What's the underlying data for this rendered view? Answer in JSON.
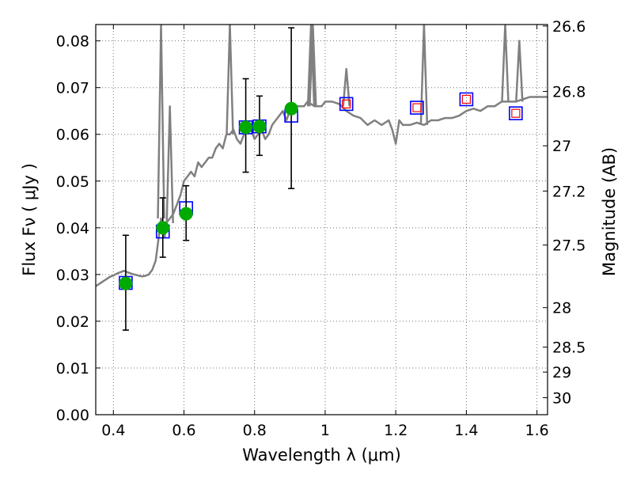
{
  "chart_data": {
    "type": "scatter",
    "xlabel": "Wavelength  λ (μm)",
    "ylabel": "Flux  Fν  ( μJy )",
    "ylabel_right": "Magnitude (AB)",
    "xlim": [
      0.35,
      1.63
    ],
    "ylim": [
      0.0,
      0.0835
    ],
    "x_ticks": [
      0.4,
      0.6,
      0.8,
      1.0,
      1.2,
      1.4,
      1.6
    ],
    "x_tick_labels": [
      "0.4",
      "0.6",
      "0.8",
      "1",
      "1.2",
      "1.4",
      "1.6"
    ],
    "y_ticks": [
      0.0,
      0.01,
      0.02,
      0.03,
      0.04,
      0.05,
      0.06,
      0.07,
      0.08
    ],
    "y_tick_labels": [
      "0.00",
      "0.01",
      "0.02",
      "0.03",
      "0.04",
      "0.05",
      "0.06",
      "0.07",
      "0.08"
    ],
    "right_ticks": [
      {
        "label": "26.6",
        "mag": 26.6
      },
      {
        "label": "26.8",
        "mag": 26.8
      },
      {
        "label": "27",
        "mag": 27.0
      },
      {
        "label": "27.2",
        "mag": 27.2
      },
      {
        "label": "27.5",
        "mag": 27.5
      },
      {
        "label": "28",
        "mag": 28.0
      },
      {
        "label": "28.5",
        "mag": 28.5
      },
      {
        "label": "29",
        "mag": 29.0
      },
      {
        "label": "30",
        "mag": 30.0
      }
    ],
    "grid": true,
    "series": [
      {
        "name": "Model spectrum",
        "kind": "line",
        "color": "#808080",
        "x": [
          0.35,
          0.36,
          0.37,
          0.38,
          0.39,
          0.4,
          0.41,
          0.42,
          0.43,
          0.44,
          0.45,
          0.46,
          0.47,
          0.48,
          0.49,
          0.5,
          0.51,
          0.52,
          0.525,
          0.53,
          0.535,
          0.54,
          0.545,
          0.55,
          0.56,
          0.57,
          0.58,
          0.59,
          0.6,
          0.61,
          0.62,
          0.63,
          0.64,
          0.65,
          0.66,
          0.67,
          0.68,
          0.69,
          0.7,
          0.71,
          0.72,
          0.73,
          0.74,
          0.75,
          0.76,
          0.77,
          0.78,
          0.79,
          0.8,
          0.81,
          0.82,
          0.83,
          0.84,
          0.85,
          0.86,
          0.87,
          0.88,
          0.89,
          0.9,
          0.91,
          0.92,
          0.93,
          0.94,
          0.95,
          0.96,
          0.97,
          0.98,
          0.99,
          1.0,
          1.02,
          1.04,
          1.06,
          1.08,
          1.1,
          1.12,
          1.14,
          1.16,
          1.18,
          1.19,
          1.2,
          1.21,
          1.22,
          1.24,
          1.26,
          1.28,
          1.3,
          1.32,
          1.34,
          1.36,
          1.38,
          1.4,
          1.42,
          1.44,
          1.46,
          1.48,
          1.5,
          1.52,
          1.54,
          1.56,
          1.58,
          1.6,
          1.63
        ],
        "y": [
          0.0275,
          0.028,
          0.0285,
          0.029,
          0.0295,
          0.0298,
          0.0302,
          0.0305,
          0.0308,
          0.0305,
          0.0302,
          0.03,
          0.0298,
          0.0296,
          0.0297,
          0.03,
          0.031,
          0.033,
          0.036,
          0.039,
          0.042,
          0.04,
          0.038,
          0.041,
          0.042,
          0.043,
          0.045,
          0.047,
          0.05,
          0.051,
          0.052,
          0.051,
          0.054,
          0.053,
          0.054,
          0.055,
          0.055,
          0.057,
          0.058,
          0.057,
          0.06,
          0.06,
          0.061,
          0.059,
          0.058,
          0.06,
          0.062,
          0.061,
          0.059,
          0.06,
          0.061,
          0.059,
          0.06,
          0.062,
          0.063,
          0.064,
          0.065,
          0.063,
          0.065,
          0.065,
          0.066,
          0.066,
          0.066,
          0.067,
          0.0665,
          0.066,
          0.066,
          0.066,
          0.067,
          0.067,
          0.0665,
          0.065,
          0.064,
          0.0635,
          0.062,
          0.063,
          0.062,
          0.063,
          0.061,
          0.058,
          0.063,
          0.062,
          0.062,
          0.0625,
          0.062,
          0.063,
          0.063,
          0.0635,
          0.0635,
          0.064,
          0.065,
          0.0655,
          0.065,
          0.066,
          0.066,
          0.067,
          0.067,
          0.067,
          0.0675,
          0.068,
          0.068,
          0.068
        ]
      },
      {
        "name": "Emission lines",
        "kind": "spikes",
        "color": "#808080",
        "x": [
          0.535,
          0.56,
          0.73,
          0.96,
          0.965,
          1.06,
          1.28,
          1.51,
          1.55
        ],
        "y_base": [
          0.042,
          0.041,
          0.06,
          0.066,
          0.066,
          0.066,
          0.062,
          0.067,
          0.067
        ],
        "y_peak": [
          0.0835,
          0.066,
          0.0835,
          0.0835,
          0.0835,
          0.074,
          0.0835,
          0.0835,
          0.08
        ]
      },
      {
        "name": "Model photometry",
        "kind": "open-square",
        "color": "#0000ff",
        "x": [
          0.435,
          0.54,
          0.606,
          0.775,
          0.814,
          0.904,
          1.06,
          1.26,
          1.4,
          1.54
        ],
        "y": [
          0.0282,
          0.0392,
          0.0442,
          0.0615,
          0.0617,
          0.064,
          0.0665,
          0.0657,
          0.0675,
          0.0645
        ]
      },
      {
        "name": "Synthetic flux",
        "kind": "small-square",
        "color": "#ff0000",
        "x": [
          1.06,
          1.26,
          1.4,
          1.54
        ],
        "y": [
          0.0665,
          0.0657,
          0.0675,
          0.0645
        ]
      },
      {
        "name": "Observed photometry",
        "kind": "points-errorbars",
        "color": "#00aa00",
        "x": [
          0.435,
          0.54,
          0.606,
          0.775,
          0.814,
          0.904
        ],
        "y": [
          0.0281,
          0.04,
          0.043,
          0.0615,
          0.0617,
          0.0655
        ],
        "err_low": [
          0.0181,
          0.0337,
          0.0373,
          0.0519,
          0.0555,
          0.0484
        ],
        "err_high": [
          0.0384,
          0.0464,
          0.049,
          0.0719,
          0.0682,
          0.0828
        ]
      }
    ]
  }
}
